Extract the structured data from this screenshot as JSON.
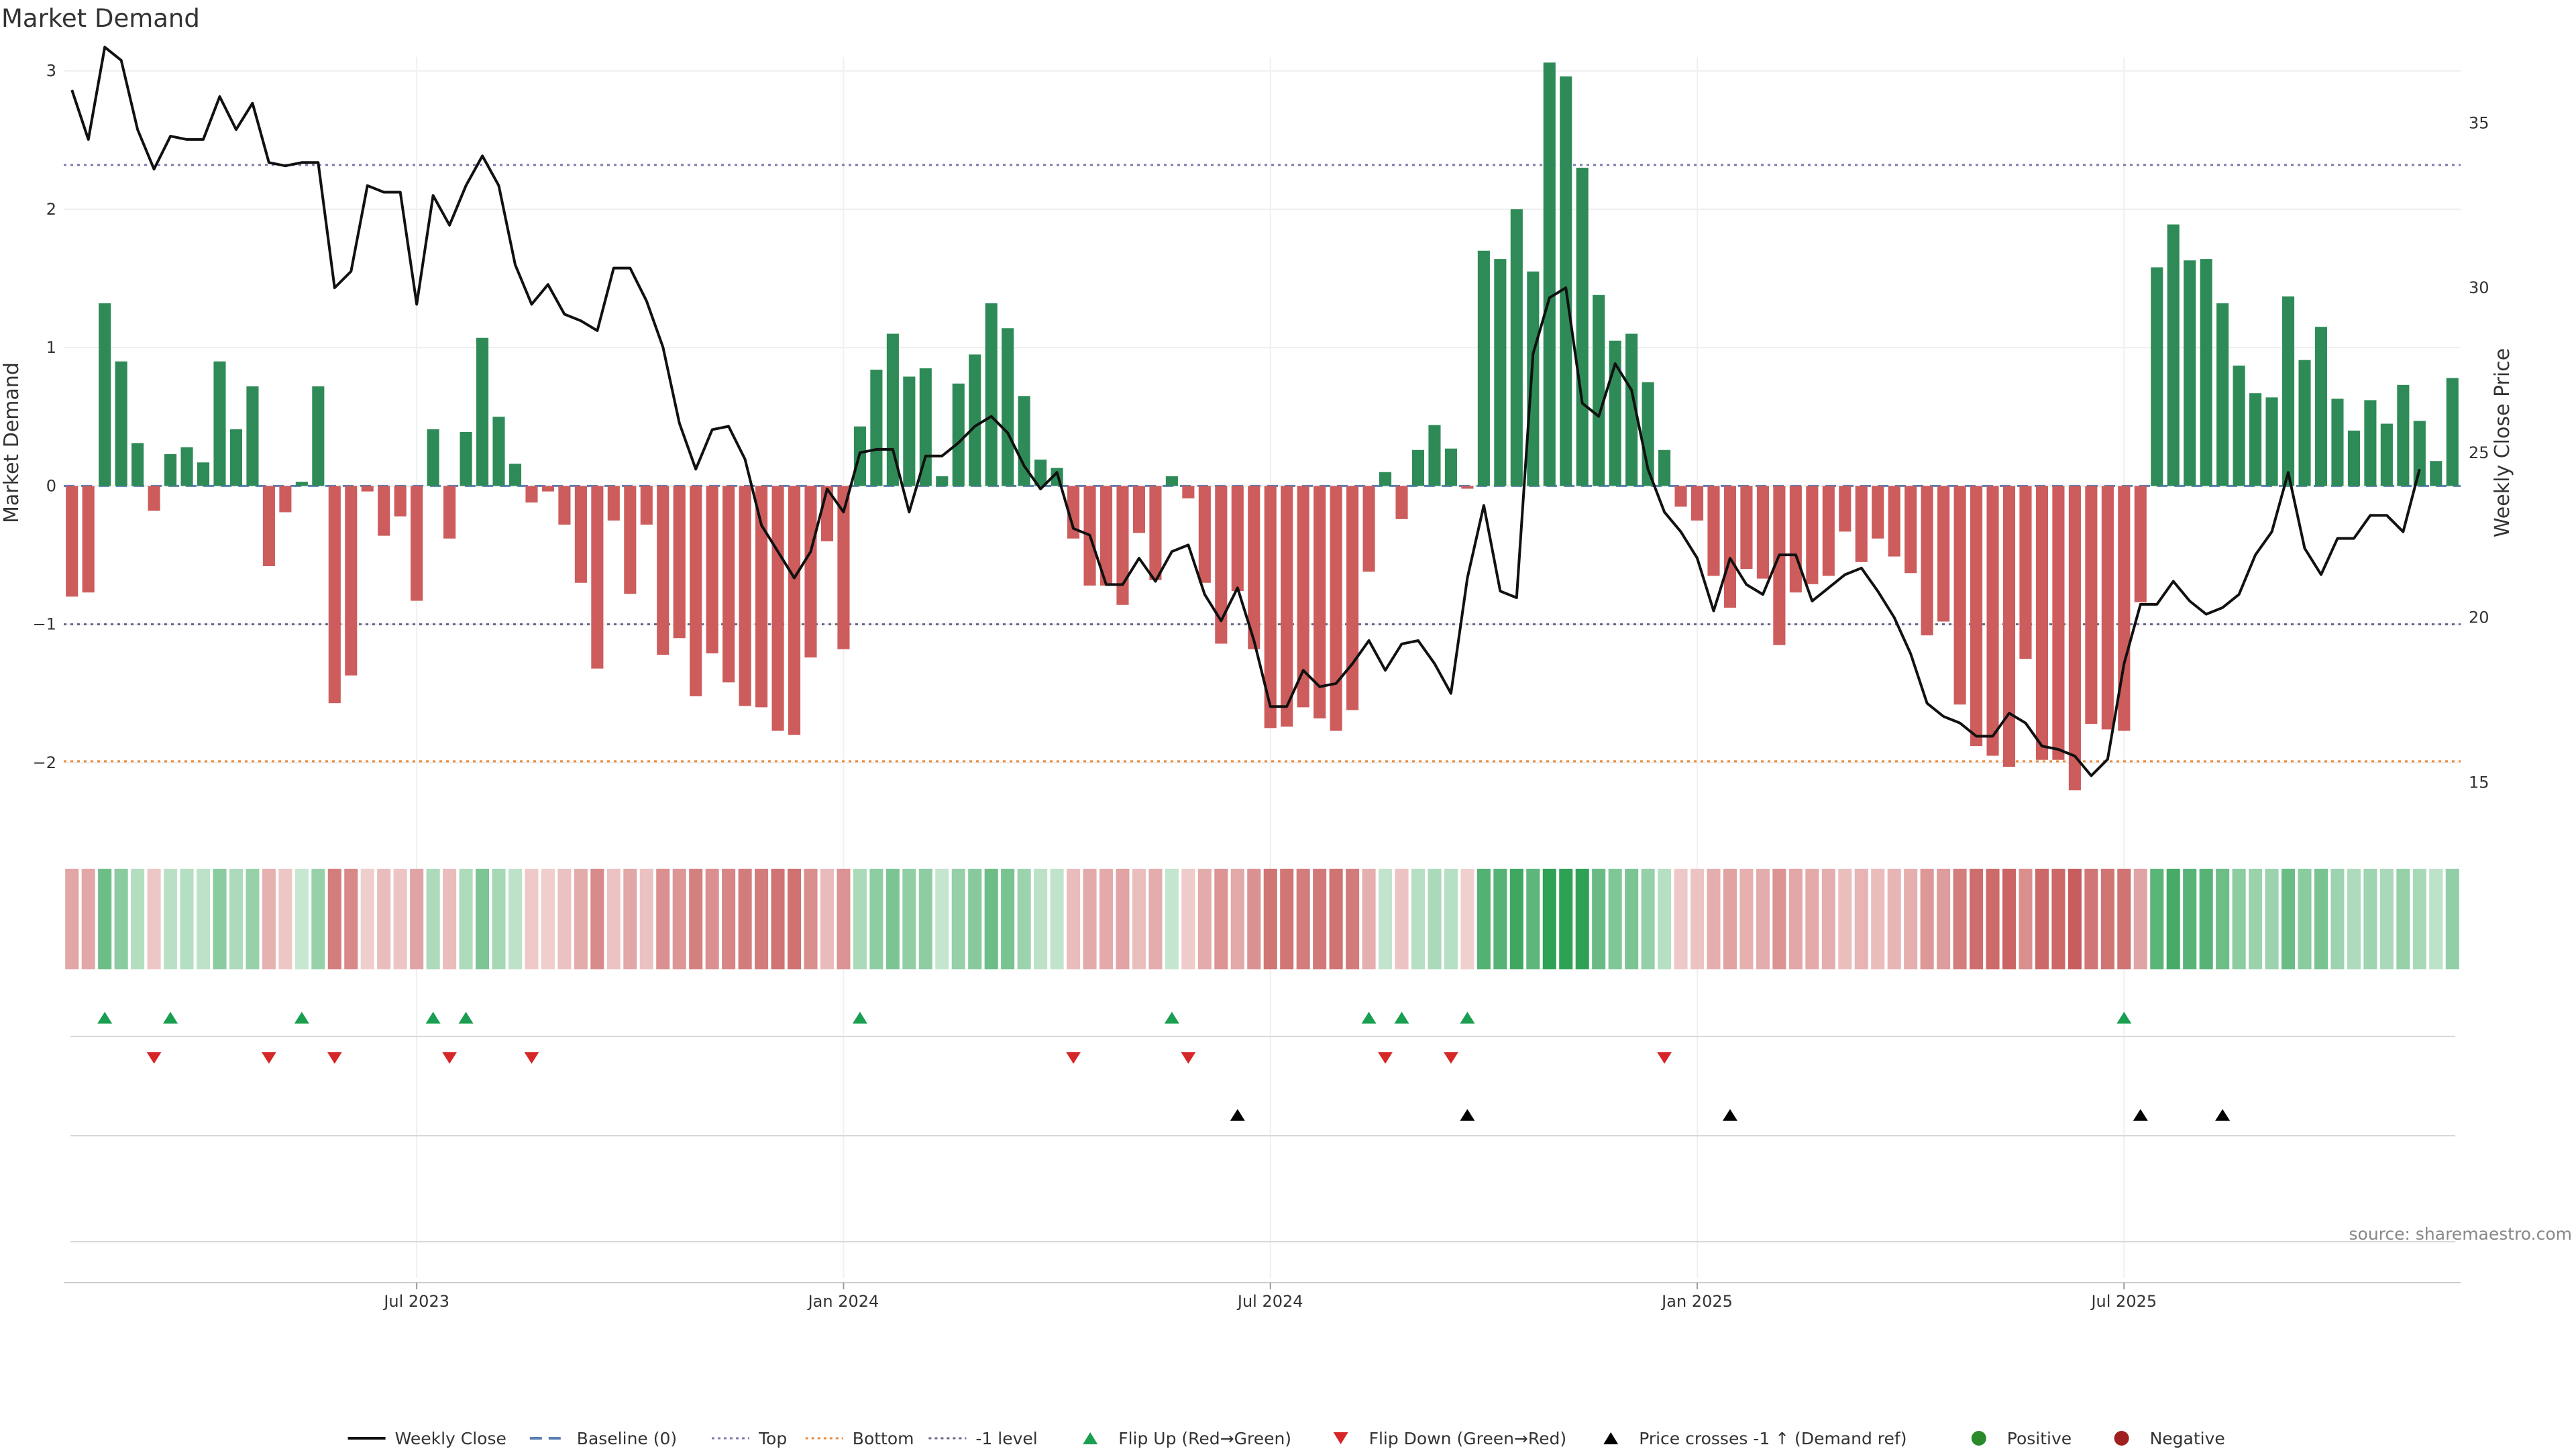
{
  "chart_data": {
    "type": "bar+line",
    "title": "Market Demand",
    "ylabel_left": "Market Demand",
    "ylabel_right": "Weekly Close Price",
    "ylim_left": [
      -2.5,
      3.1
    ],
    "ylim_right": [
      13.5,
      37.0
    ],
    "y_ticks_left": [
      "3",
      "2",
      "1",
      "0",
      "−1",
      "−2"
    ],
    "y_tick_values_left": [
      3,
      2,
      1,
      0,
      -1,
      -2
    ],
    "y_ticks_right": [
      "35",
      "30",
      "25",
      "20",
      "15"
    ],
    "y_tick_values_right": [
      35,
      30,
      25,
      20,
      15
    ],
    "x_ticks": [
      "Jul 2023",
      "Jan 2024",
      "Jul 2024",
      "Jan 2025",
      "Jul 2025"
    ],
    "x_tick_week_index": [
      21,
      47,
      73,
      99,
      125
    ],
    "reference_lines": [
      {
        "name": "Baseline (0)",
        "value": 0,
        "color": "#5b7fb5",
        "dash": "dashed"
      },
      {
        "name": "Top",
        "value": 2.32,
        "color": "#7a7ab0",
        "dash": "dotted"
      },
      {
        "name": "Bottom",
        "value": -1.99,
        "color": "#e88a3c",
        "dash": "dotted"
      },
      {
        "name": "-1 level",
        "value": -1.0,
        "color": "#666688",
        "dash": "dotted"
      }
    ],
    "demand_values": [
      -0.8,
      -0.77,
      1.32,
      0.9,
      0.31,
      -0.18,
      0.23,
      0.28,
      0.17,
      0.9,
      0.41,
      0.72,
      -0.58,
      -0.19,
      0.03,
      0.72,
      -1.57,
      -1.37,
      -0.04,
      -0.36,
      -0.22,
      -0.83,
      0.41,
      -0.38,
      0.39,
      1.07,
      0.5,
      0.16,
      -0.12,
      -0.04,
      -0.28,
      -0.7,
      -1.32,
      -0.25,
      -0.78,
      -0.28,
      -1.22,
      -1.1,
      -1.52,
      -1.21,
      -1.42,
      -1.59,
      -1.6,
      -1.77,
      -1.8,
      -1.24,
      -0.4,
      -1.18,
      0.43,
      0.84,
      1.1,
      0.79,
      0.85,
      0.07,
      0.74,
      0.95,
      1.32,
      1.14,
      0.65,
      0.19,
      0.13,
      -0.38,
      -0.72,
      -0.72,
      -0.86,
      -0.34,
      -0.68,
      0.07,
      -0.09,
      -0.7,
      -1.14,
      -0.76,
      -1.18,
      -1.75,
      -1.74,
      -1.6,
      -1.68,
      -1.77,
      -1.62,
      -0.62,
      0.1,
      -0.24,
      0.26,
      0.44,
      0.27,
      -0.02,
      1.7,
      1.64,
      2.0,
      1.55,
      3.06,
      2.96,
      2.3,
      1.38,
      1.05,
      1.1,
      0.75,
      0.26,
      -0.15,
      -0.25,
      -0.65,
      -0.88,
      -0.6,
      -0.67,
      -1.15,
      -0.77,
      -0.71,
      -0.65,
      -0.33,
      -0.55,
      -0.38,
      -0.51,
      -0.63,
      -1.08,
      -0.98,
      -1.58,
      -1.88,
      -1.95,
      -2.03,
      -1.25,
      -1.98,
      -1.98,
      -2.2,
      -1.72,
      -1.76,
      -1.77,
      -0.84,
      1.58,
      1.89,
      1.63,
      1.64,
      1.32,
      0.87,
      0.67,
      0.64,
      1.37,
      0.91,
      1.15,
      0.63,
      0.4,
      0.62,
      0.45,
      0.73,
      0.47,
      0.18,
      0.78
    ],
    "weekly_close": [
      36.0,
      34.5,
      37.3,
      36.9,
      34.8,
      33.6,
      34.6,
      34.5,
      34.5,
      35.8,
      34.8,
      35.6,
      33.8,
      33.7,
      33.8,
      33.8,
      30.0,
      30.5,
      33.1,
      32.9,
      32.9,
      29.5,
      32.8,
      31.9,
      33.1,
      34.0,
      33.1,
      30.7,
      29.5,
      30.1,
      29.2,
      29.0,
      28.7,
      30.6,
      30.6,
      29.6,
      28.2,
      25.9,
      24.5,
      25.7,
      25.8,
      24.8,
      22.8,
      22.0,
      21.2,
      22.0,
      23.9,
      23.2,
      25.0,
      25.1,
      25.1,
      23.2,
      24.9,
      24.9,
      25.3,
      25.8,
      26.1,
      25.6,
      24.6,
      23.9,
      24.4,
      22.7,
      22.5,
      21.0,
      21.0,
      21.8,
      21.1,
      22.0,
      22.2,
      20.7,
      19.9,
      20.9,
      19.3,
      17.3,
      17.3,
      18.4,
      17.9,
      18.0,
      18.6,
      19.3,
      18.4,
      19.2,
      19.3,
      18.6,
      17.7,
      21.2,
      23.4,
      20.8,
      20.6,
      28.0,
      29.7,
      30.0,
      26.5,
      26.1,
      27.7,
      26.9,
      24.5,
      23.2,
      22.6,
      21.8,
      20.2,
      21.8,
      21.0,
      20.7,
      21.9,
      21.9,
      20.5,
      20.9,
      21.3,
      21.5,
      20.8,
      20.0,
      18.9,
      17.4,
      17.0,
      16.8,
      16.4,
      16.4,
      17.1,
      16.8,
      16.1,
      16.0,
      15.8,
      15.2,
      15.7,
      18.6,
      20.4,
      20.4,
      21.1,
      20.5,
      20.1,
      20.3,
      20.7,
      21.9,
      22.6,
      24.4,
      22.1,
      21.3,
      22.4,
      22.4,
      23.1,
      23.1,
      22.6,
      24.5
    ],
    "flip_up_week_index": [
      2,
      6,
      14,
      22,
      24,
      48,
      67,
      79,
      81,
      85,
      125
    ],
    "flip_down_week_index": [
      5,
      12,
      16,
      23,
      28,
      61,
      68,
      80,
      84,
      97
    ],
    "price_cross_week_index": [
      71,
      85,
      101,
      126,
      131
    ],
    "series": [
      {
        "name": "Weekly Close",
        "color": "#111111"
      },
      {
        "name": "Positive",
        "color": "#2e8b57"
      },
      {
        "name": "Negative",
        "color": "#cd5c5c"
      }
    ],
    "legend_position": "bottom-center"
  },
  "legend": {
    "items": [
      {
        "label": "Weekly Close",
        "symbol": "line",
        "color": "#111111"
      },
      {
        "label": "Baseline (0)",
        "symbol": "dashed",
        "color": "#5b7fb5"
      },
      {
        "label": "Top",
        "symbol": "dotted",
        "color": "#7a7ab0"
      },
      {
        "label": "Bottom",
        "symbol": "dotted",
        "color": "#e88a3c"
      },
      {
        "label": "-1 level",
        "symbol": "dotted",
        "color": "#666688"
      },
      {
        "label": "Flip Up (Red→Green)",
        "symbol": "tri-up",
        "color": "#1a9e50"
      },
      {
        "label": "Flip Down (Green→Red)",
        "symbol": "tri-down",
        "color": "#d62728"
      },
      {
        "label": "Price crosses -1 ↑ (Demand ref)",
        "symbol": "tri-up",
        "color": "#000000"
      },
      {
        "label": "Positive",
        "symbol": "dot",
        "color": "#2a8a2a"
      },
      {
        "label": "Negative",
        "symbol": "dot",
        "color": "#a02020"
      }
    ]
  },
  "source_note": "source: sharemaestro.com"
}
